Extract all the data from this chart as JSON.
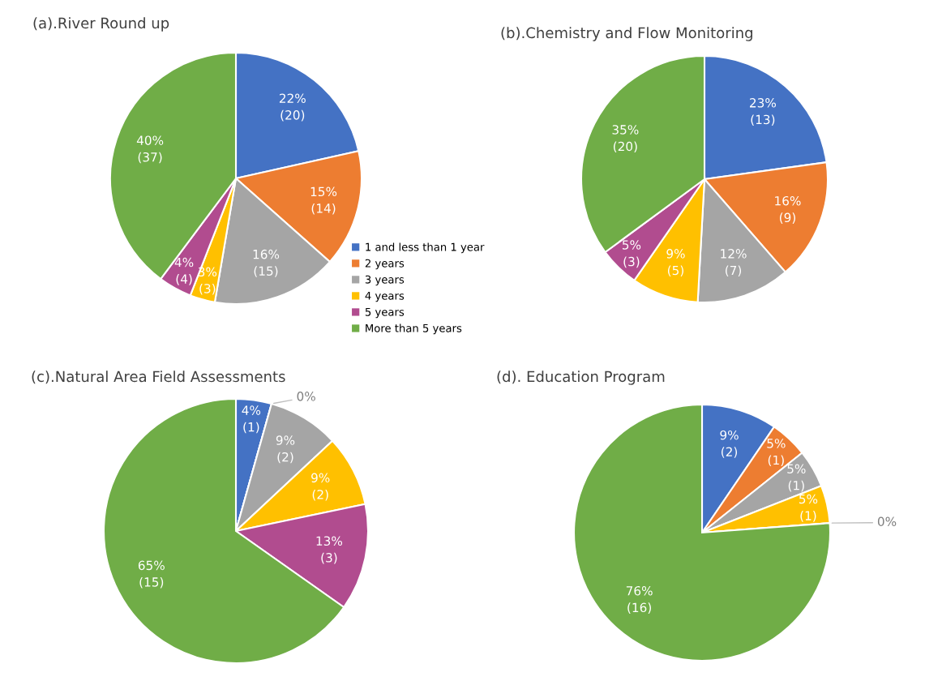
{
  "chart_data": [
    {
      "type": "pie",
      "title": "(a).River Round up",
      "categories": [
        "1 and less than 1 year",
        "2 years",
        "3 years",
        "4 years",
        "5 years",
        "More than 5 years"
      ],
      "values": [
        20,
        14,
        15,
        3,
        4,
        37
      ],
      "value_labels": [
        "22%\n(20)",
        "15%\n(14)",
        "16%\n(15)",
        "3%\n(3)",
        "4%\n(4)",
        "40%\n(37)"
      ],
      "colors": [
        "#4472c4",
        "#ed7d31",
        "#a5a5a5",
        "#ffc000",
        "#b14c8f",
        "#70ad47"
      ],
      "legend": "bottom right"
    },
    {
      "type": "pie",
      "title": "(b).Chemistry and Flow Monitoring",
      "categories": [
        null,
        null,
        null,
        null,
        null,
        null
      ],
      "values": [
        13,
        9,
        7,
        5,
        3,
        20
      ],
      "value_labels": [
        "23%\n(13)",
        "16%\n(9)",
        "12%\n(7)",
        "9%\n(5)",
        "5%\n(3)",
        "35%\n(20)"
      ],
      "colors": [
        "#4472c4",
        "#ed7d31",
        "#a5a5a5",
        "#ffc000",
        "#b14c8f",
        "#70ad47"
      ]
    },
    {
      "type": "pie",
      "title": "(c).Natural Area Field Assessments",
      "categories": [
        null,
        null,
        null,
        null,
        null,
        null
      ],
      "values": [
        1,
        0,
        2,
        2,
        3,
        15
      ],
      "value_labels": [
        "4%\n(1)",
        "0%",
        "9%\n(2)",
        "9%\n(2)",
        "13%\n(3)",
        "65%\n(15)"
      ],
      "colors": [
        "#4472c4",
        "#ed7d31",
        "#a5a5a5",
        "#ffc000",
        "#b14c8f",
        "#70ad47"
      ]
    },
    {
      "type": "pie",
      "title": "(d). Education Program",
      "categories": [
        null,
        null,
        null,
        null,
        null,
        null
      ],
      "values": [
        2,
        1,
        1,
        1,
        0,
        16
      ],
      "value_labels": [
        "9%\n(2)",
        "5%\n(1)",
        "5%\n(1)",
        "5%\n(1)",
        "0%",
        "76%\n(16)"
      ],
      "colors": [
        "#4472c4",
        "#ed7d31",
        "#a5a5a5",
        "#ffc000",
        "#b14c8f",
        "#70ad47"
      ]
    }
  ]
}
